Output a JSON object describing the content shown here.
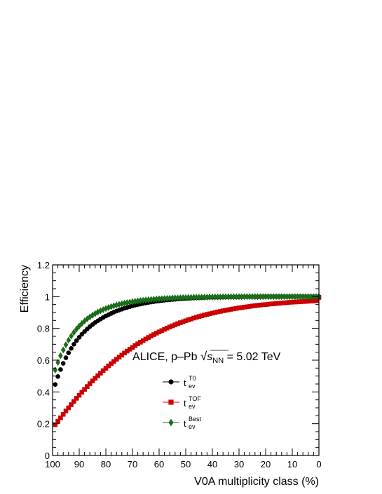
{
  "chart_data": {
    "type": "scatter",
    "xlabel": "V0A multiplicity class (%)",
    "ylabel": "Efficiency",
    "xlim": [
      100,
      0
    ],
    "ylim": [
      0,
      1.2
    ],
    "x_reversed": true,
    "xticks": [
      "100",
      "90",
      "80",
      "70",
      "60",
      "50",
      "40",
      "30",
      "20",
      "10",
      "0"
    ],
    "yticks": [
      "0",
      "0.2",
      "0.4",
      "0.6",
      "0.8",
      "1",
      "1.2"
    ],
    "annotation": {
      "main": "ALICE, p–Pb ",
      "sqrt_symbol": "√",
      "s": "s",
      "sub": "NN",
      "value": " = 5.02 TeV"
    },
    "legend_position": "center",
    "series": [
      {
        "base": "t",
        "sub": "ev",
        "sup": "T0",
        "color": "#000000",
        "marker": "circle",
        "x": [
          99,
          98,
          97,
          96,
          95,
          94,
          93,
          92,
          91,
          90,
          89,
          88,
          87,
          86,
          85,
          84,
          83,
          82,
          81,
          80,
          79,
          78,
          77,
          76,
          75,
          74,
          73,
          72,
          71,
          70,
          69,
          68,
          67,
          66,
          65,
          64,
          63,
          62,
          61,
          60,
          59,
          58,
          57,
          56,
          55,
          54,
          53,
          52,
          51,
          50,
          49,
          48,
          47,
          46,
          45,
          44,
          43,
          42,
          41,
          40,
          39,
          38,
          37,
          36,
          35,
          34,
          33,
          32,
          31,
          30,
          29,
          28,
          27,
          26,
          25,
          24,
          23,
          22,
          21,
          20,
          19,
          18,
          17,
          16,
          15,
          14,
          13,
          12,
          11,
          10,
          9,
          8,
          7,
          6,
          5,
          4,
          3,
          2,
          1,
          0
        ],
        "y": [
          0.447,
          0.497,
          0.541,
          0.58,
          0.615,
          0.646,
          0.674,
          0.7,
          0.723,
          0.744,
          0.763,
          0.78,
          0.796,
          0.811,
          0.824,
          0.837,
          0.848,
          0.859,
          0.869,
          0.878,
          0.886,
          0.894,
          0.902,
          0.909,
          0.915,
          0.921,
          0.927,
          0.932,
          0.937,
          0.942,
          0.946,
          0.95,
          0.953,
          0.957,
          0.96,
          0.963,
          0.966,
          0.968,
          0.971,
          0.973,
          0.975,
          0.977,
          0.979,
          0.98,
          0.982,
          0.983,
          0.985,
          0.986,
          0.987,
          0.988,
          0.989,
          0.99,
          0.991,
          0.992,
          0.993,
          0.993,
          0.994,
          0.995,
          0.995,
          0.996,
          0.996,
          0.996,
          0.997,
          0.997,
          0.997,
          0.998,
          0.998,
          0.998,
          0.998,
          0.998,
          0.999,
          0.999,
          0.999,
          0.999,
          0.999,
          0.999,
          0.999,
          0.999,
          1.0,
          1.0,
          1.0,
          1.0,
          1.0,
          1.0,
          1.0,
          1.0,
          1.0,
          1.0,
          1.0,
          1.0,
          1.0,
          1.0,
          1.0,
          1.0,
          1.0,
          1.0,
          1.0,
          1.0,
          1.0,
          1.0
        ]
      },
      {
        "base": "t",
        "sub": "ev",
        "sup": "TOF",
        "color": "#cc0000",
        "marker": "square",
        "x": [
          99,
          98,
          97,
          96,
          95,
          94,
          93,
          92,
          91,
          90,
          89,
          88,
          87,
          86,
          85,
          84,
          83,
          82,
          81,
          80,
          79,
          78,
          77,
          76,
          75,
          74,
          73,
          72,
          71,
          70,
          69,
          68,
          67,
          66,
          65,
          64,
          63,
          62,
          61,
          60,
          59,
          58,
          57,
          56,
          55,
          54,
          53,
          52,
          51,
          50,
          49,
          48,
          47,
          46,
          45,
          44,
          43,
          42,
          41,
          40,
          39,
          38,
          37,
          36,
          35,
          34,
          33,
          32,
          31,
          30,
          29,
          28,
          27,
          26,
          25,
          24,
          23,
          22,
          21,
          20,
          19,
          18,
          17,
          16,
          15,
          14,
          13,
          12,
          11,
          10,
          9,
          8,
          7,
          6,
          5,
          4,
          3,
          2,
          1,
          0
        ],
        "y": [
          0.194,
          0.216,
          0.237,
          0.259,
          0.28,
          0.3,
          0.32,
          0.34,
          0.36,
          0.379,
          0.398,
          0.416,
          0.434,
          0.452,
          0.469,
          0.486,
          0.502,
          0.518,
          0.534,
          0.549,
          0.564,
          0.578,
          0.592,
          0.606,
          0.619,
          0.632,
          0.645,
          0.657,
          0.669,
          0.68,
          0.692,
          0.703,
          0.713,
          0.723,
          0.733,
          0.743,
          0.752,
          0.761,
          0.77,
          0.778,
          0.786,
          0.794,
          0.802,
          0.809,
          0.816,
          0.823,
          0.83,
          0.836,
          0.842,
          0.848,
          0.854,
          0.859,
          0.865,
          0.87,
          0.875,
          0.879,
          0.884,
          0.888,
          0.892,
          0.896,
          0.9,
          0.904,
          0.907,
          0.911,
          0.914,
          0.917,
          0.92,
          0.923,
          0.926,
          0.929,
          0.931,
          0.934,
          0.936,
          0.938,
          0.941,
          0.943,
          0.945,
          0.947,
          0.949,
          0.95,
          0.952,
          0.954,
          0.955,
          0.957,
          0.958,
          0.96,
          0.961,
          0.962,
          0.964,
          0.965,
          0.966,
          0.967,
          0.968,
          0.969,
          0.97,
          0.971,
          0.972,
          0.973,
          0.974,
          0.995
        ]
      },
      {
        "base": "t",
        "sub": "ev",
        "sup": "Best",
        "color": "#1a6e1a",
        "marker": "diamond",
        "x": [
          99,
          98,
          97,
          96,
          95,
          94,
          93,
          92,
          91,
          90,
          89,
          88,
          87,
          86,
          85,
          84,
          83,
          82,
          81,
          80,
          79,
          78,
          77,
          76,
          75,
          74,
          73,
          72,
          71,
          70,
          69,
          68,
          67,
          66,
          65,
          64,
          63,
          62,
          61,
          60,
          59,
          58,
          57,
          56,
          55,
          54,
          53,
          52,
          51,
          50,
          49,
          48,
          47,
          46,
          45,
          44,
          43,
          42,
          41,
          40,
          39,
          38,
          37,
          36,
          35,
          34,
          33,
          32,
          31,
          30,
          29,
          28,
          27,
          26,
          25,
          24,
          23,
          22,
          21,
          20,
          19,
          18,
          17,
          16,
          15,
          14,
          13,
          12,
          11,
          10,
          9,
          8,
          7,
          6,
          5,
          4,
          3,
          2,
          1,
          0
        ],
        "y": [
          0.538,
          0.586,
          0.628,
          0.664,
          0.697,
          0.726,
          0.752,
          0.775,
          0.796,
          0.814,
          0.831,
          0.846,
          0.86,
          0.872,
          0.883,
          0.893,
          0.903,
          0.911,
          0.918,
          0.925,
          0.931,
          0.937,
          0.942,
          0.947,
          0.951,
          0.955,
          0.959,
          0.962,
          0.965,
          0.968,
          0.97,
          0.973,
          0.975,
          0.977,
          0.979,
          0.98,
          0.982,
          0.983,
          0.985,
          0.986,
          0.987,
          0.988,
          0.989,
          0.99,
          0.991,
          0.992,
          0.992,
          0.993,
          0.994,
          0.994,
          0.995,
          0.995,
          0.996,
          0.996,
          0.996,
          0.997,
          0.997,
          0.997,
          0.998,
          0.998,
          0.998,
          0.998,
          0.998,
          0.999,
          0.999,
          0.999,
          0.999,
          0.999,
          0.999,
          0.999,
          0.999,
          1.0,
          1.0,
          1.0,
          1.0,
          1.0,
          1.0,
          1.0,
          1.0,
          1.0,
          1.0,
          1.0,
          1.0,
          1.0,
          1.0,
          1.0,
          1.0,
          1.0,
          1.0,
          1.0,
          1.0,
          1.0,
          1.0,
          1.0,
          1.0,
          1.0,
          1.0,
          1.0,
          1.0,
          1.0
        ]
      }
    ]
  }
}
